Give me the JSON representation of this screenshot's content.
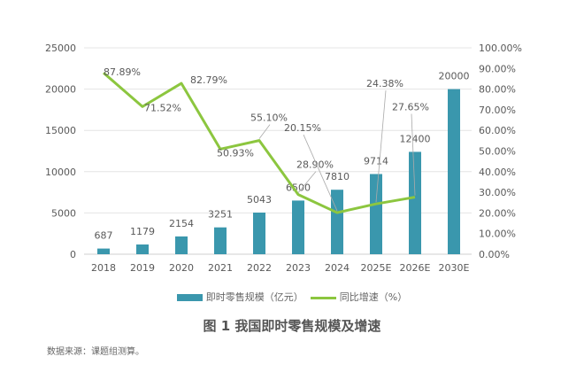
{
  "chart_data": {
    "type": "bar+line",
    "categories": [
      "2018",
      "2019",
      "2020",
      "2021",
      "2022",
      "2023",
      "2024",
      "2025E",
      "2026E",
      "2030E"
    ],
    "series": [
      {
        "name": "即时零售规模（亿元）",
        "type": "bar",
        "axis": "left",
        "color": "#3a97ad",
        "values": [
          687,
          1179,
          2154,
          3251,
          5043,
          6500,
          7810,
          9714,
          12400,
          20000
        ],
        "labels": [
          "687",
          "1179",
          "2154",
          "3251",
          "5043",
          "6500",
          "7810",
          "9714",
          "12400",
          "20000"
        ]
      },
      {
        "name": "同比增速（%）",
        "type": "line",
        "axis": "right",
        "color": "#8cc63f",
        "values": [
          87.89,
          71.52,
          82.79,
          50.93,
          55.1,
          28.9,
          20.15,
          24.38,
          27.65,
          null
        ],
        "labels": [
          "87.89%",
          "71.52%",
          "82.79%",
          "50.93%",
          "55.10%",
          "28.90%",
          "20.15%",
          "24.38%",
          "27.65%",
          ""
        ]
      }
    ],
    "ylim_left": [
      0,
      25000
    ],
    "yticks_left": [
      "0",
      "5000",
      "10000",
      "15000",
      "20000",
      "25000"
    ],
    "ylim_right": [
      0,
      100
    ],
    "yticks_right": [
      "0.00%",
      "10.00%",
      "20.00%",
      "30.00%",
      "40.00%",
      "50.00%",
      "60.00%",
      "70.00%",
      "80.00%",
      "90.00%",
      "100.00%"
    ],
    "grid": true,
    "legend_position": "bottom",
    "title": "图 1 我国即时零售规模及增速"
  },
  "source": "数据来源：课题组测算。"
}
